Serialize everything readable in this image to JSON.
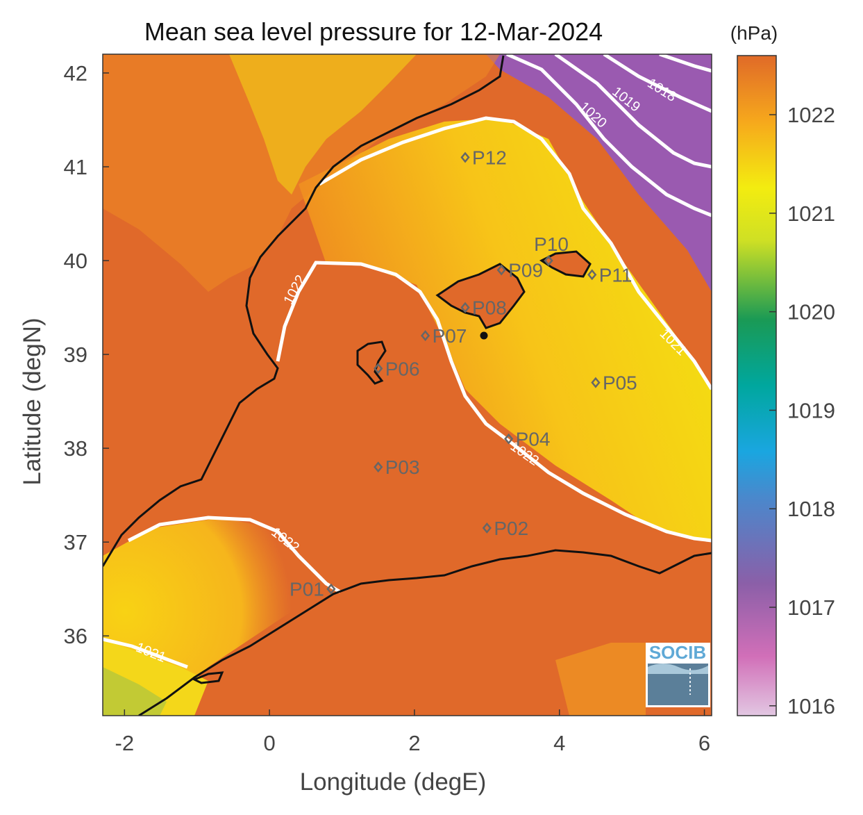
{
  "title": "Mean sea level pressure for 12-Mar-2024",
  "xlabel": "Longitude (degE)",
  "ylabel": "Latitude (degN)",
  "x_ticks": [
    "-2",
    "0",
    "2",
    "4",
    "6"
  ],
  "y_ticks": [
    "42",
    "41",
    "40",
    "39",
    "38",
    "37",
    "36"
  ],
  "colorbar": {
    "unit": "(hPa)",
    "ticks": [
      "1022",
      "1021",
      "1020",
      "1019",
      "1018",
      "1017",
      "1016"
    ],
    "range": [
      1015.9,
      1022.6
    ],
    "colors": [
      "#e2c7e2",
      "#d16fb8",
      "#8b5fa8",
      "#2a9fe0",
      "#00a79e",
      "#1a9a55",
      "#f3ec10",
      "#f6a81c",
      "#e06a28"
    ]
  },
  "contour_labels": [
    "1022",
    "1022",
    "1022",
    "1021",
    "1021",
    "1020",
    "1019",
    "1018"
  ],
  "logo_text": "SOCIB",
  "chart_data": {
    "type": "heatmap",
    "title": "Mean sea level pressure for 12-Mar-2024",
    "xlabel": "Longitude (degE)",
    "ylabel": "Latitude (degN)",
    "xlim": [
      -2.3,
      6.1
    ],
    "ylim": [
      35.15,
      42.2
    ],
    "color_range": [
      1015.9,
      1022.6
    ],
    "unit": "hPa",
    "contour_levels": [
      1018,
      1019,
      1020,
      1021,
      1022
    ],
    "points": [
      {
        "name": "P01",
        "lon": 0.85,
        "lat": 36.5
      },
      {
        "name": "P02",
        "lon": 3.0,
        "lat": 37.15
      },
      {
        "name": "P03",
        "lon": 1.5,
        "lat": 37.8
      },
      {
        "name": "P04",
        "lon": 3.3,
        "lat": 38.1
      },
      {
        "name": "P05",
        "lon": 4.5,
        "lat": 38.7
      },
      {
        "name": "P06",
        "lon": 1.5,
        "lat": 38.85
      },
      {
        "name": "P07",
        "lon": 2.15,
        "lat": 39.2
      },
      {
        "name": "P08",
        "lon": 2.7,
        "lat": 39.5
      },
      {
        "name": "P09",
        "lon": 3.2,
        "lat": 39.9
      },
      {
        "name": "P10",
        "lon": 3.85,
        "lat": 40.0
      },
      {
        "name": "P11",
        "lon": 4.45,
        "lat": 39.85
      },
      {
        "name": "P12",
        "lon": 2.7,
        "lat": 41.1
      }
    ]
  }
}
